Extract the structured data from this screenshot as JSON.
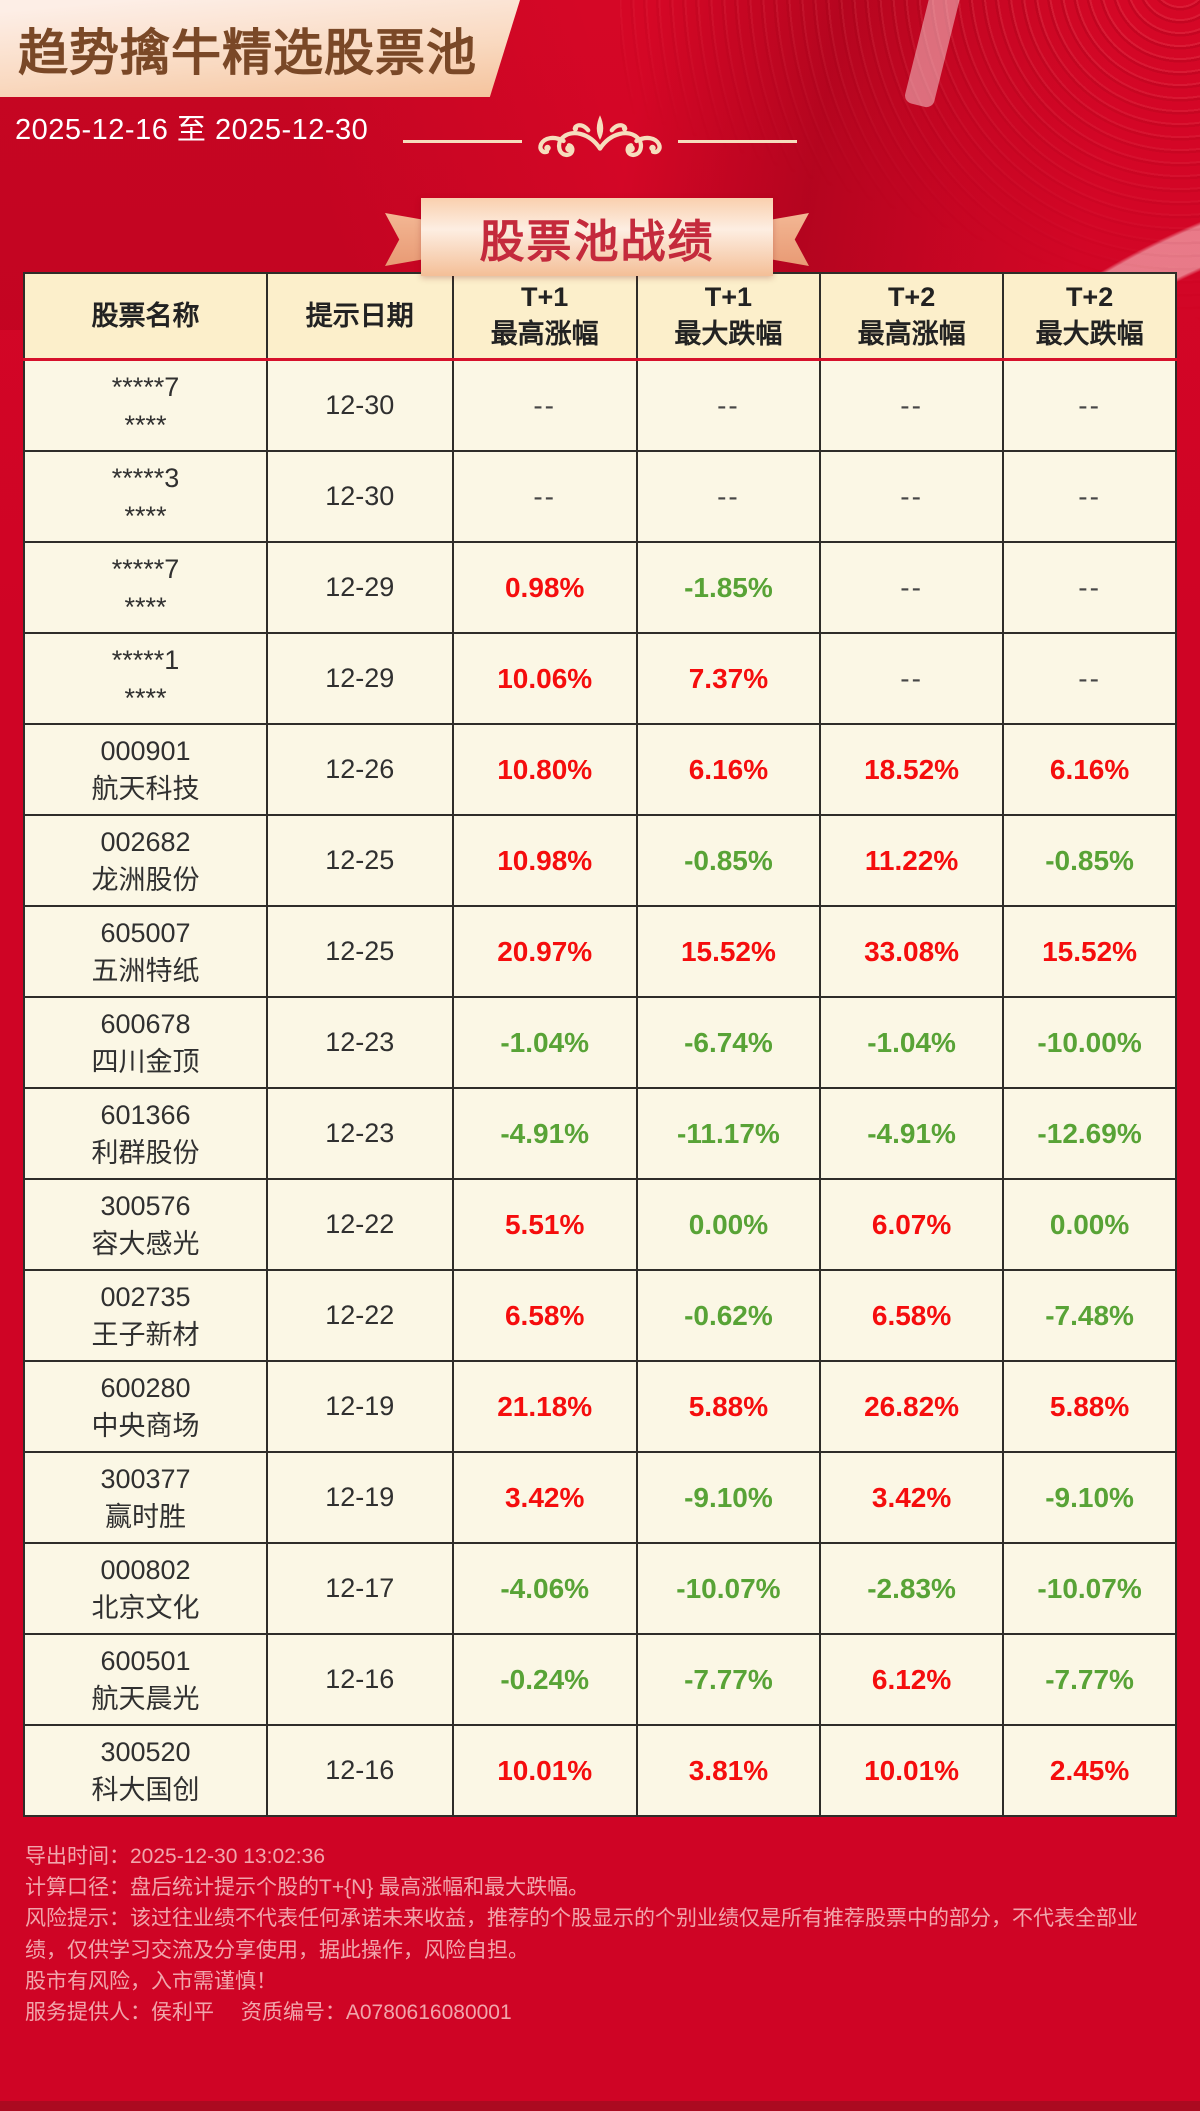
{
  "colors": {
    "page_bg": "#cf0425",
    "up": "#f50d0d",
    "down": "#58a336",
    "dash": "#474747",
    "title_text": "#7a4827",
    "banner_text": "#c42a3c",
    "footer_text": "#f1a5ab"
  },
  "header": {
    "title": "趋势擒牛精选股票池",
    "date_range": "2025-12-16 至 2025-12-30"
  },
  "banner": {
    "label": "股票池战绩"
  },
  "table": {
    "columns": [
      {
        "l1": "股票名称",
        "l2": ""
      },
      {
        "l1": "提示日期",
        "l2": ""
      },
      {
        "l1": "T+1",
        "l2": "最高涨幅"
      },
      {
        "l1": "T+1",
        "l2": "最大跌幅"
      },
      {
        "l1": "T+2",
        "l2": "最高涨幅"
      },
      {
        "l1": "T+2",
        "l2": "最大跌幅"
      }
    ],
    "rows": [
      {
        "code": "*****7",
        "name": "****",
        "date": "12-30",
        "v": [
          "--",
          "--",
          "--",
          "--"
        ]
      },
      {
        "code": "*****3",
        "name": "****",
        "date": "12-30",
        "v": [
          "--",
          "--",
          "--",
          "--"
        ]
      },
      {
        "code": "*****7",
        "name": "****",
        "date": "12-29",
        "v": [
          "0.98%",
          "-1.85%",
          "--",
          "--"
        ]
      },
      {
        "code": "*****1",
        "name": "****",
        "date": "12-29",
        "v": [
          "10.06%",
          "7.37%",
          "--",
          "--"
        ]
      },
      {
        "code": "000901",
        "name": "航天科技",
        "date": "12-26",
        "v": [
          "10.80%",
          "6.16%",
          "18.52%",
          "6.16%"
        ]
      },
      {
        "code": "002682",
        "name": "龙洲股份",
        "date": "12-25",
        "v": [
          "10.98%",
          "-0.85%",
          "11.22%",
          "-0.85%"
        ]
      },
      {
        "code": "605007",
        "name": "五洲特纸",
        "date": "12-25",
        "v": [
          "20.97%",
          "15.52%",
          "33.08%",
          "15.52%"
        ]
      },
      {
        "code": "600678",
        "name": "四川金顶",
        "date": "12-23",
        "v": [
          "-1.04%",
          "-6.74%",
          "-1.04%",
          "-10.00%"
        ]
      },
      {
        "code": "601366",
        "name": "利群股份",
        "date": "12-23",
        "v": [
          "-4.91%",
          "-11.17%",
          "-4.91%",
          "-12.69%"
        ]
      },
      {
        "code": "300576",
        "name": "容大感光",
        "date": "12-22",
        "v": [
          "5.51%",
          "0.00%",
          "6.07%",
          "0.00%"
        ]
      },
      {
        "code": "002735",
        "name": "王子新材",
        "date": "12-22",
        "v": [
          "6.58%",
          "-0.62%",
          "6.58%",
          "-7.48%"
        ]
      },
      {
        "code": "600280",
        "name": "中央商场",
        "date": "12-19",
        "v": [
          "21.18%",
          "5.88%",
          "26.82%",
          "5.88%"
        ]
      },
      {
        "code": "300377",
        "name": "赢时胜",
        "date": "12-19",
        "v": [
          "3.42%",
          "-9.10%",
          "3.42%",
          "-9.10%"
        ]
      },
      {
        "code": "000802",
        "name": "北京文化",
        "date": "12-17",
        "v": [
          "-4.06%",
          "-10.07%",
          "-2.83%",
          "-10.07%"
        ]
      },
      {
        "code": "600501",
        "name": "航天晨光",
        "date": "12-16",
        "v": [
          "-0.24%",
          "-7.77%",
          "6.12%",
          "-7.77%"
        ]
      },
      {
        "code": "300520",
        "name": "科大国创",
        "date": "12-16",
        "v": [
          "10.01%",
          "3.81%",
          "10.01%",
          "2.45%"
        ]
      }
    ]
  },
  "footer": {
    "lines": [
      "导出时间：2025-12-30 13:02:36",
      "计算口径：盘后统计提示个股的T+{N} 最高涨幅和最大跌幅。",
      "风险提示：该过往业绩不代表任何承诺未来收益，推荐的个股显示的个别业绩仅是所有推荐股票中的部分，不代表全部业绩，仅供学习交流及分享使用，据此操作，风险自担。",
      "股市有风险，入市需谨慎！",
      "服务提供人：侯利平　 资质编号：A0780616080001"
    ]
  }
}
